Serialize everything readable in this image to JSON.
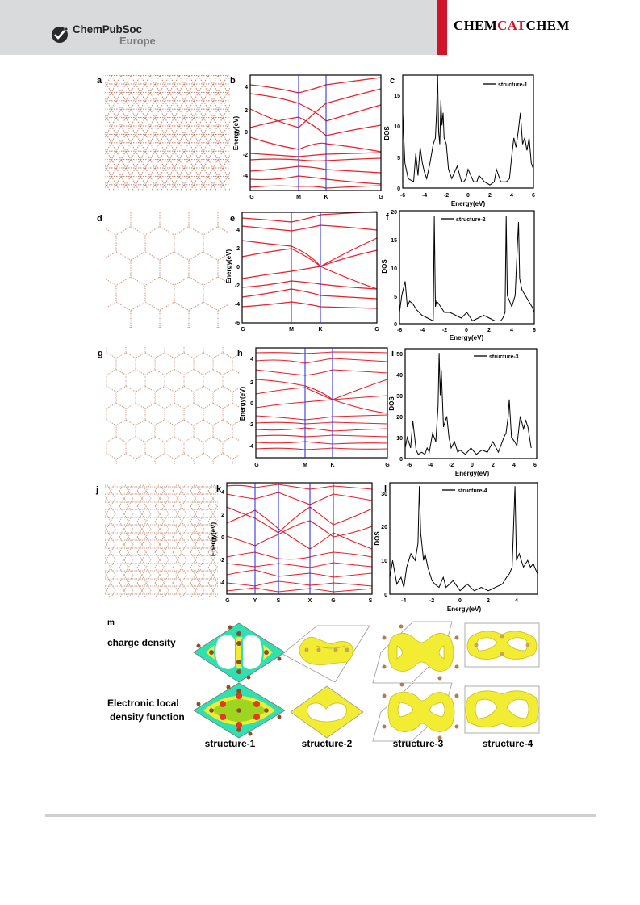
{
  "header": {
    "publisher_name": "ChemPubSoc",
    "publisher_sub": "Europe",
    "journal_part1": "CHEM",
    "journal_part2": "CAT",
    "journal_part3": "CHEM"
  },
  "figure": {
    "rows": [
      {
        "structure_label": "a",
        "band_label": "b",
        "dos_label": "c",
        "band_kpoints": [
          "G",
          "M",
          "K",
          "G"
        ],
        "band_yticks": [
          "4",
          "2",
          "0",
          "-2",
          "-4"
        ],
        "band_ylabel": "Energy(eV)",
        "dos_legend": "structure-1",
        "dos_yticks": [
          "15",
          "10",
          "5",
          "0"
        ],
        "dos_xticks": [
          "-6",
          "-4",
          "-2",
          "0",
          "2",
          "4",
          "6"
        ],
        "dos_ylabel": "DOS",
        "dos_xlabel": "Energy(eV)"
      },
      {
        "structure_label": "d",
        "band_label": "e",
        "dos_label": "f",
        "band_kpoints": [
          "G",
          "M",
          "K",
          "G"
        ],
        "band_yticks": [
          "4",
          "2",
          "0",
          "-2",
          "-4",
          "-6"
        ],
        "band_ylabel": "Energy(eV)",
        "dos_legend": "structure-2",
        "dos_yticks": [
          "20",
          "15",
          "10",
          "5",
          "0"
        ],
        "dos_xticks": [
          "-6",
          "-4",
          "-2",
          "0",
          "2",
          "4",
          "6"
        ],
        "dos_ylabel": "DOS",
        "dos_xlabel": "Energy(eV)"
      },
      {
        "structure_label": "g",
        "band_label": "h",
        "dos_label": "i",
        "band_kpoints": [
          "G",
          "M",
          "K",
          "G"
        ],
        "band_yticks": [
          "4",
          "2",
          "0",
          "-2",
          "-4"
        ],
        "band_ylabel": "Energy(eV)",
        "dos_legend": "structure-3",
        "dos_yticks": [
          "50",
          "40",
          "30",
          "20",
          "10",
          "0"
        ],
        "dos_xticks": [
          "-6",
          "-4",
          "-2",
          "0",
          "2",
          "4",
          "6"
        ],
        "dos_ylabel": "DOS",
        "dos_xlabel": "Energy(eV)"
      },
      {
        "structure_label": "j",
        "band_label": "k",
        "dos_label": "l",
        "band_kpoints": [
          "G",
          "Y",
          "S",
          "X",
          "G",
          "S"
        ],
        "band_yticks": [
          "4",
          "2",
          "0",
          "-2",
          "-4"
        ],
        "band_ylabel": "Energy(eV)",
        "dos_legend": "structure-4",
        "dos_yticks": [
          "30",
          "20",
          "10",
          "0"
        ],
        "dos_xticks": [
          "-4",
          "-2",
          "0",
          "2",
          "4"
        ],
        "dos_ylabel": "DOS",
        "dos_xlabel": "Energy(eV)"
      }
    ],
    "panel_m": {
      "label": "m",
      "row1_label": "charge density",
      "row2_label_line1": "Electronic local",
      "row2_label_line2": "density function",
      "structures": [
        "structure-1",
        "structure-2",
        "structure-3",
        "structure-4"
      ]
    }
  },
  "colors": {
    "band_line": "#e8202a",
    "kpoint_line": "#2222dd",
    "lattice_atom": "#b9806a",
    "isosurface": "#f2ec32",
    "header_bg": "#d9dadb",
    "journal_red": "#d2142b"
  },
  "chart_data": [
    {
      "type": "line",
      "panel": "c",
      "series": [
        {
          "name": "structure-1",
          "x": [
            -6,
            -5.8,
            -5.5,
            -5,
            -4.8,
            -4.6,
            -4.4,
            -4.2,
            -4.0,
            -3.8,
            -3.5,
            -3.2,
            -3.0,
            -2.9,
            -2.8,
            -2.7,
            -2.6,
            -2.5,
            -2.4,
            -2.3,
            -2.2,
            -2.0,
            -1.8,
            -1.5,
            -1.0,
            -0.6,
            -0.4,
            -0.2,
            0,
            0.5,
            0.8,
            1.0,
            1.5,
            2.0,
            2.4,
            2.6,
            3.0,
            3.5,
            3.8,
            4.0,
            4.2,
            4.4,
            4.6,
            4.8,
            5.0,
            5.2,
            5.4,
            5.6,
            5.8,
            6.0
          ],
          "y": [
            12,
            4,
            1.5,
            1,
            5.5,
            2,
            6.5,
            4,
            2.5,
            1.5,
            4,
            7,
            8,
            12,
            18,
            9,
            7,
            14,
            10,
            12,
            8,
            7,
            3,
            1.5,
            3.5,
            1,
            1,
            1.5,
            3,
            1,
            1,
            2,
            1,
            0.5,
            1,
            3,
            1,
            1,
            1.5,
            5,
            8,
            6.5,
            9,
            12,
            7,
            8,
            6,
            8,
            4,
            3
          ]
        }
      ],
      "xlim": [
        -6,
        6
      ],
      "ylim": [
        0,
        18
      ],
      "xlabel": "Energy(eV)",
      "ylabel": "DOS"
    },
    {
      "type": "line",
      "panel": "f",
      "series": [
        {
          "name": "structure-2",
          "x": [
            -6,
            -5.8,
            -5.5,
            -5.3,
            -5.1,
            -4.8,
            -4.5,
            -4.0,
            -3.5,
            -3.0,
            -2.9,
            -2.8,
            -2.7,
            -2.5,
            -2.0,
            -1.5,
            -1.0,
            -0.5,
            0,
            0.5,
            1.0,
            1.5,
            2.0,
            2.5,
            3.0,
            3.2,
            3.4,
            3.5,
            3.6,
            3.8,
            4.0,
            4.3,
            4.5,
            4.6,
            4.7,
            4.9,
            5.2,
            5.5,
            5.8,
            6.0
          ],
          "y": [
            2,
            5,
            7.5,
            3,
            4,
            3.5,
            2.5,
            1.5,
            1,
            0.5,
            19,
            3,
            4,
            3.5,
            2,
            2,
            1.5,
            1,
            2,
            0.5,
            1,
            1.5,
            1,
            0.5,
            0.5,
            1,
            2,
            19,
            5,
            4,
            3,
            5,
            14,
            18,
            8,
            6,
            5,
            4,
            3,
            2
          ]
        }
      ],
      "xlim": [
        -6,
        6
      ],
      "ylim": [
        0,
        20
      ],
      "xlabel": "Energy(eV)",
      "ylabel": "DOS"
    },
    {
      "type": "line",
      "panel": "i",
      "series": [
        {
          "name": "structure-3",
          "x": [
            -6,
            -5.8,
            -5.5,
            -5.3,
            -5.0,
            -4.8,
            -4.5,
            -4.2,
            -4.0,
            -3.8,
            -3.5,
            -3.2,
            -3.0,
            -2.9,
            -2.8,
            -2.7,
            -2.5,
            -2.2,
            -2.0,
            -1.8,
            -1.5,
            -1.2,
            -1.0,
            -0.5,
            0,
            0.5,
            1.0,
            1.5,
            2.0,
            2.5,
            3.0,
            3.2,
            3.4,
            3.5,
            3.7,
            4.0,
            4.2,
            4.5,
            4.8,
            5.0,
            5.2,
            5.5
          ],
          "y": [
            5,
            10,
            5,
            18,
            4,
            2,
            3,
            2,
            5,
            3,
            12,
            8,
            25,
            50,
            30,
            42,
            15,
            20,
            10,
            5,
            8,
            3,
            4,
            2,
            5,
            2,
            4,
            3,
            8,
            3,
            10,
            12,
            20,
            28,
            10,
            8,
            6,
            20,
            14,
            18,
            15,
            5
          ]
        }
      ],
      "xlim": [
        -6,
        6
      ],
      "ylim": [
        0,
        52
      ],
      "xlabel": "Energy(eV)",
      "ylabel": "DOS"
    },
    {
      "type": "line",
      "panel": "l",
      "series": [
        {
          "name": "structure-4",
          "x": [
            -5,
            -4.8,
            -4.5,
            -4.2,
            -4.0,
            -3.8,
            -3.5,
            -3.2,
            -3.0,
            -2.9,
            -2.8,
            -2.7,
            -2.6,
            -2.5,
            -2.3,
            -2.0,
            -1.8,
            -1.5,
            -1.2,
            -1.0,
            -0.5,
            0,
            0.5,
            1.0,
            1.5,
            2.0,
            2.5,
            3.0,
            3.3,
            3.5,
            3.7,
            3.9,
            4.0,
            4.2,
            4.5,
            4.8,
            5.0,
            5.2,
            5.5
          ],
          "y": [
            5,
            10,
            3,
            5,
            2,
            8,
            12,
            10,
            15,
            32,
            18,
            14,
            10,
            12,
            8,
            4,
            3,
            2,
            5,
            2,
            4,
            1,
            3,
            1,
            2,
            1,
            2,
            3,
            5,
            6,
            8,
            32,
            10,
            12,
            8,
            10,
            8,
            9,
            6
          ]
        }
      ],
      "xlim": [
        -5,
        5.5
      ],
      "ylim": [
        0,
        33
      ],
      "xlabel": "Energy(eV)",
      "ylabel": "DOS"
    }
  ]
}
